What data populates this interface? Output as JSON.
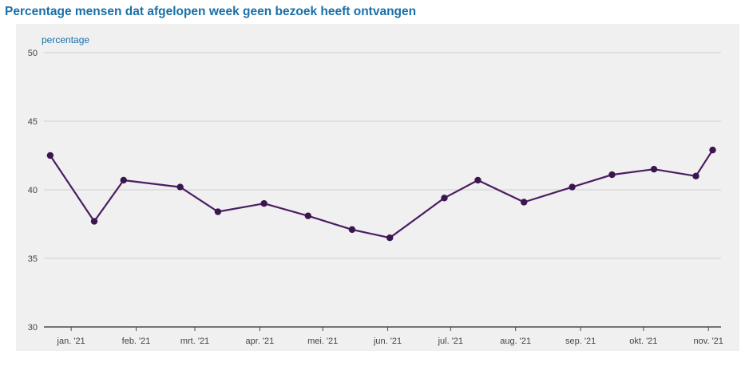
{
  "title": "Percentage mensen dat afgelopen week geen bezoek heeft ontvangen",
  "colors": {
    "title": "#1a6fa6",
    "ylabel": "#1a6fa6",
    "line": "#4b1d62",
    "marker": "#3a1550",
    "grid": "#d0d0d0",
    "axis": "#4a4a4a",
    "tick_label": "#444444",
    "background": "#f0f0f0"
  },
  "chart_data": {
    "type": "line",
    "title": "Percentage mensen dat afgelopen week geen bezoek heeft ontvangen",
    "xlabel": "",
    "ylabel": "percentage",
    "ylim": [
      30,
      50
    ],
    "yticks": [
      30,
      35,
      40,
      45,
      50
    ],
    "xlim": [
      "2020-12-19",
      "2021-11-07"
    ],
    "xticks": [
      {
        "label": "jan. '21",
        "date": "2021-01-01"
      },
      {
        "label": "feb. '21",
        "date": "2021-02-01"
      },
      {
        "label": "mrt. '21",
        "date": "2021-03-01"
      },
      {
        "label": "apr. '21",
        "date": "2021-04-01"
      },
      {
        "label": "mei. '21",
        "date": "2021-05-01"
      },
      {
        "label": "jun. '21",
        "date": "2021-06-01"
      },
      {
        "label": "jul. '21",
        "date": "2021-07-01"
      },
      {
        "label": "aug. '21",
        "date": "2021-08-01"
      },
      {
        "label": "sep. '21",
        "date": "2021-09-01"
      },
      {
        "label": "okt. '21",
        "date": "2021-10-01"
      },
      {
        "label": "nov. '21",
        "date": "2021-11-01"
      }
    ],
    "grid": true,
    "legend": "none",
    "series": [
      {
        "points": [
          {
            "x": "2020-12-22",
            "y": 42.5
          },
          {
            "x": "2021-01-12",
            "y": 37.7
          },
          {
            "x": "2021-01-26",
            "y": 40.7
          },
          {
            "x": "2021-02-22",
            "y": 40.2
          },
          {
            "x": "2021-03-12",
            "y": 38.4
          },
          {
            "x": "2021-04-03",
            "y": 39.0
          },
          {
            "x": "2021-04-24",
            "y": 38.1
          },
          {
            "x": "2021-05-15",
            "y": 37.1
          },
          {
            "x": "2021-06-02",
            "y": 36.5
          },
          {
            "x": "2021-06-28",
            "y": 39.4
          },
          {
            "x": "2021-07-14",
            "y": 40.7
          },
          {
            "x": "2021-08-05",
            "y": 39.1
          },
          {
            "x": "2021-08-28",
            "y": 40.2
          },
          {
            "x": "2021-09-16",
            "y": 41.1
          },
          {
            "x": "2021-10-06",
            "y": 41.5
          },
          {
            "x": "2021-10-26",
            "y": 41.0
          },
          {
            "x": "2021-11-03",
            "y": 42.9
          }
        ]
      }
    ]
  }
}
